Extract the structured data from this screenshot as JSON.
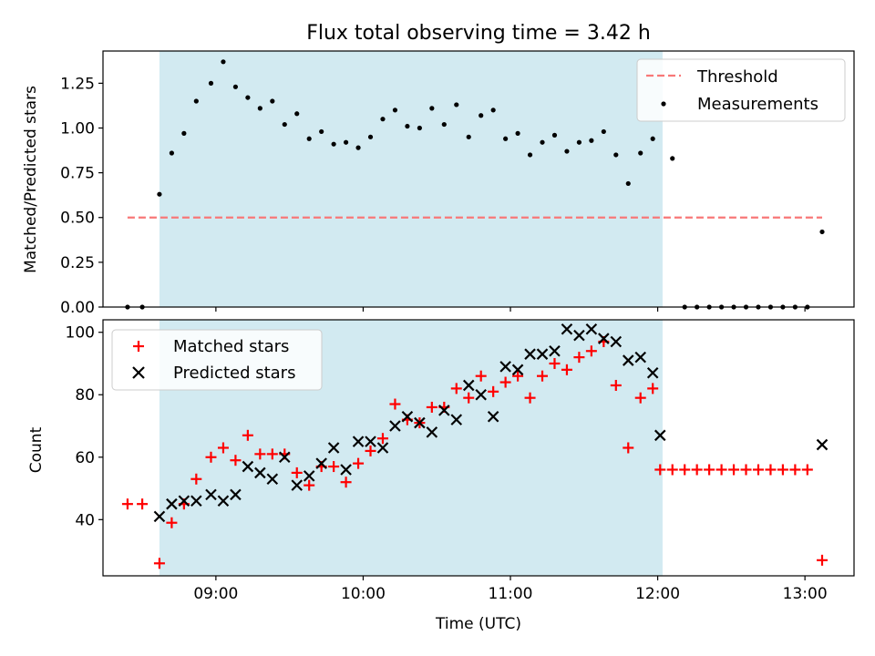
{
  "chart_data": [
    {
      "type": "scatter",
      "title": "Flux total observing time = 3.42 h",
      "ylabel": "Matched/Predicted stars",
      "xlim": [
        "08:14",
        "13:20"
      ],
      "ylim": [
        0,
        1.43
      ],
      "yticks": [
        0,
        0.25,
        0.5,
        0.75,
        1.0,
        1.25
      ],
      "ytick_labels": [
        "0.00",
        "0.25",
        "0.50",
        "0.75",
        "1.00",
        "1.25"
      ],
      "shaded_interval": [
        "08:37",
        "12:02"
      ],
      "shade_color": "#add8e6",
      "legend": {
        "placement": "upper right",
        "entries": [
          "Threshold",
          "Measurements"
        ]
      },
      "series": [
        {
          "name": "Threshold",
          "style": "dashed-line",
          "color": "#f87878",
          "x": [
            "08:24",
            "13:07"
          ],
          "y": [
            0.5,
            0.5
          ]
        },
        {
          "name": "Measurements",
          "style": "dot",
          "color": "#000000",
          "x": [
            "08:24",
            "08:30",
            "08:37",
            "08:42",
            "08:47",
            "08:52",
            "08:58",
            "09:03",
            "09:08",
            "09:13",
            "09:18",
            "09:23",
            "09:28",
            "09:33",
            "09:38",
            "09:43",
            "09:48",
            "09:53",
            "09:58",
            "10:03",
            "10:08",
            "10:13",
            "10:18",
            "10:23",
            "10:28",
            "10:33",
            "10:38",
            "10:43",
            "10:48",
            "10:53",
            "10:58",
            "11:03",
            "11:08",
            "11:13",
            "11:18",
            "11:23",
            "11:28",
            "11:33",
            "11:38",
            "11:43",
            "11:48",
            "11:53",
            "11:58",
            "12:06",
            "12:11",
            "12:16",
            "12:21",
            "12:26",
            "12:31",
            "12:36",
            "12:41",
            "12:46",
            "12:51",
            "12:56",
            "13:01",
            "13:07"
          ],
          "y": [
            0.0,
            0.0,
            0.63,
            0.86,
            0.97,
            1.15,
            1.25,
            1.37,
            1.23,
            1.17,
            1.11,
            1.15,
            1.02,
            1.08,
            0.94,
            0.98,
            0.91,
            0.92,
            0.89,
            0.95,
            1.05,
            1.1,
            1.01,
            1.0,
            1.11,
            1.02,
            1.13,
            0.95,
            1.07,
            1.1,
            0.94,
            0.97,
            0.85,
            0.92,
            0.96,
            0.87,
            0.92,
            0.93,
            0.98,
            0.85,
            0.69,
            0.86,
            0.94,
            0.83,
            0.0,
            0.0,
            0.0,
            0.0,
            0.0,
            0.0,
            0.0,
            0.0,
            0.0,
            0.0,
            0.0,
            0.42
          ]
        }
      ]
    },
    {
      "type": "scatter",
      "title": "",
      "xlabel": "Time (UTC)",
      "ylabel": "Count",
      "xlim": [
        "08:14",
        "13:20"
      ],
      "ylim": [
        22,
        104
      ],
      "xticks": [
        "09:00",
        "10:00",
        "11:00",
        "12:00",
        "13:00"
      ],
      "yticks": [
        40,
        60,
        80,
        100
      ],
      "ytick_labels": [
        "40",
        "60",
        "80",
        "100"
      ],
      "shaded_interval": [
        "08:37",
        "12:02"
      ],
      "shade_color": "#add8e6",
      "legend": {
        "placement": "upper left",
        "entries": [
          "Matched stars",
          "Predicted stars"
        ]
      },
      "series": [
        {
          "name": "Matched stars",
          "marker": "plus",
          "color": "#ff0000",
          "x": [
            "08:24",
            "08:30",
            "08:37",
            "08:42",
            "08:47",
            "08:52",
            "08:58",
            "09:03",
            "09:08",
            "09:13",
            "09:18",
            "09:23",
            "09:28",
            "09:33",
            "09:38",
            "09:43",
            "09:48",
            "09:53",
            "09:58",
            "10:03",
            "10:08",
            "10:13",
            "10:18",
            "10:23",
            "10:28",
            "10:33",
            "10:38",
            "10:43",
            "10:48",
            "10:53",
            "10:58",
            "11:03",
            "11:08",
            "11:13",
            "11:18",
            "11:23",
            "11:28",
            "11:33",
            "11:38",
            "11:43",
            "11:48",
            "11:53",
            "11:58",
            "12:01",
            "12:06",
            "12:11",
            "12:16",
            "12:21",
            "12:26",
            "12:31",
            "12:36",
            "12:41",
            "12:46",
            "12:51",
            "12:56",
            "13:01",
            "13:07"
          ],
          "y": [
            45,
            45,
            26,
            39,
            45,
            53,
            60,
            63,
            59,
            67,
            61,
            61,
            61,
            55,
            51,
            57,
            57,
            52,
            58,
            62,
            66,
            77,
            72,
            71,
            76,
            76,
            82,
            79,
            86,
            81,
            84,
            86,
            79,
            86,
            90,
            88,
            92,
            94,
            97,
            83,
            63,
            79,
            82,
            56,
            56,
            56,
            56,
            56,
            56,
            56,
            56,
            56,
            56,
            56,
            56,
            56,
            27
          ]
        },
        {
          "name": "Predicted stars",
          "marker": "x",
          "color": "#000000",
          "x": [
            "08:37",
            "08:42",
            "08:47",
            "08:52",
            "08:58",
            "09:03",
            "09:08",
            "09:13",
            "09:18",
            "09:23",
            "09:28",
            "09:33",
            "09:38",
            "09:43",
            "09:48",
            "09:53",
            "09:58",
            "10:03",
            "10:08",
            "10:13",
            "10:18",
            "10:23",
            "10:28",
            "10:33",
            "10:38",
            "10:43",
            "10:48",
            "10:53",
            "10:58",
            "11:03",
            "11:08",
            "11:13",
            "11:18",
            "11:23",
            "11:28",
            "11:33",
            "11:38",
            "11:43",
            "11:48",
            "11:53",
            "11:58",
            "12:01",
            "13:07"
          ],
          "y": [
            41,
            45,
            46,
            46,
            48,
            46,
            48,
            57,
            55,
            53,
            60,
            51,
            54,
            58,
            63,
            56,
            65,
            65,
            63,
            70,
            73,
            71,
            68,
            75,
            72,
            83,
            80,
            73,
            89,
            88,
            93,
            93,
            94,
            101,
            99,
            101,
            98,
            97,
            91,
            92,
            87,
            67,
            64
          ]
        }
      ]
    }
  ]
}
